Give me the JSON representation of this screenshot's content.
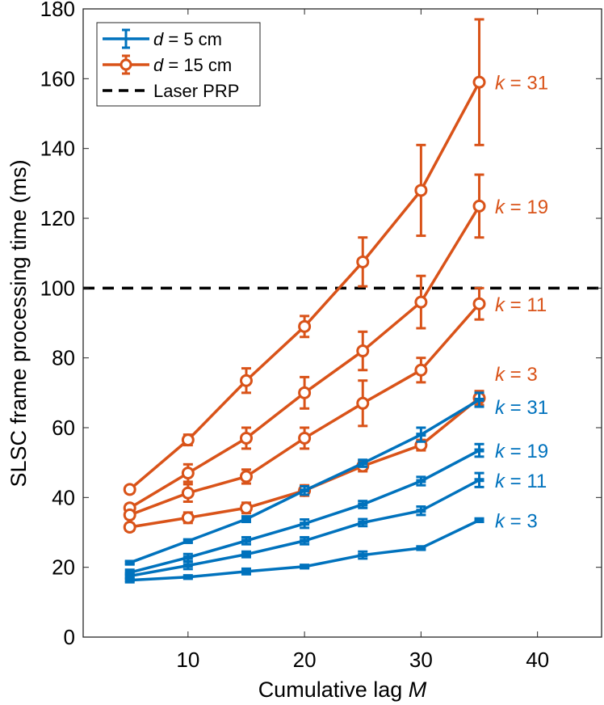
{
  "chart_data": {
    "type": "line",
    "title": "",
    "xlabel": "Cumulative lag",
    "xlabel_var": "M",
    "ylabel": "SLSC frame processing time (ms)",
    "xlim": [
      1,
      45.5
    ],
    "ylim": [
      0,
      180
    ],
    "xticks": [
      10,
      20,
      30,
      40
    ],
    "yticks": [
      0,
      20,
      40,
      60,
      80,
      100,
      120,
      140,
      160,
      180
    ],
    "grid": false,
    "legend_position": "top-left",
    "x": [
      5,
      10,
      15,
      20,
      25,
      30,
      35
    ],
    "series": [
      {
        "name": "d = 15 cm",
        "group": "d15",
        "k": "k = 31",
        "color": "#D95319",
        "marker": "circle",
        "values": [
          42.3,
          56.5,
          73.5,
          89,
          107.5,
          128,
          159
        ],
        "errors": [
          1,
          1.5,
          3.5,
          3,
          7,
          13,
          18
        ]
      },
      {
        "name": "d = 15 cm",
        "group": "d15",
        "k": "k = 19",
        "color": "#D95319",
        "marker": "circle",
        "values": [
          37,
          47,
          57,
          70,
          82,
          96,
          123.5
        ],
        "errors": [
          1,
          2.5,
          3,
          4.5,
          5.5,
          7.5,
          9
        ]
      },
      {
        "name": "d = 15 cm",
        "group": "d15",
        "k": "k = 11",
        "color": "#D95319",
        "marker": "circle",
        "values": [
          35,
          41.3,
          46,
          57,
          67,
          76.5,
          95.5
        ],
        "errors": [
          1,
          2.5,
          2,
          3,
          6.5,
          3.5,
          4.5
        ]
      },
      {
        "name": "d = 15 cm",
        "group": "d15",
        "k": "k = 3",
        "color": "#D95319",
        "marker": "circle",
        "values": [
          31.5,
          34.2,
          37,
          42,
          49,
          55,
          68.5
        ],
        "errors": [
          1,
          1.5,
          1.5,
          1.5,
          1.5,
          1.5,
          2
        ]
      },
      {
        "name": "d = 5 cm",
        "group": "d5",
        "k": "k = 31",
        "color": "#0072BD",
        "marker": "none",
        "values": [
          21.3,
          27.5,
          33.8,
          42,
          49.8,
          58,
          68
        ],
        "errors": [
          0.5,
          0.5,
          0.8,
          1.2,
          1,
          2,
          2
        ]
      },
      {
        "name": "d = 5 cm",
        "group": "d5",
        "k": "k = 19",
        "color": "#0072BD",
        "marker": "none",
        "values": [
          18.5,
          22.8,
          27.6,
          32.5,
          38,
          44.7,
          53.5
        ],
        "errors": [
          0.8,
          1,
          1,
          1.2,
          1,
          1.2,
          1.8
        ]
      },
      {
        "name": "d = 5 cm",
        "group": "d5",
        "k": "k = 11",
        "color": "#0072BD",
        "marker": "none",
        "values": [
          17.5,
          20.5,
          23.7,
          27.6,
          32.8,
          36.2,
          45
        ],
        "errors": [
          0.8,
          1,
          0.8,
          1,
          1,
          1.2,
          2
        ]
      },
      {
        "name": "d = 5 cm",
        "group": "d5",
        "k": "k = 3",
        "color": "#0072BD",
        "marker": "none",
        "values": [
          16.3,
          17.2,
          18.8,
          20.2,
          23.5,
          25.5,
          33.5
        ],
        "errors": [
          0.6,
          0.5,
          0.8,
          0.5,
          1,
          0.5,
          0.5
        ]
      }
    ],
    "reference_line": {
      "name": "Laser PRP",
      "y": 100,
      "color": "#000000",
      "style": "dashed"
    },
    "legend": [
      {
        "var": "d",
        "text": " = 5 cm",
        "color": "#0072BD",
        "marker": "errorbar"
      },
      {
        "var": "d",
        "text": " = 15 cm",
        "color": "#D95319",
        "marker": "circle-errorbar"
      },
      {
        "var": "",
        "text": "Laser PRP",
        "color": "#000000",
        "marker": "dashed"
      }
    ],
    "annotations": [
      {
        "var": "k",
        "text": " = 31",
        "y": 159,
        "color": "#D95319"
      },
      {
        "var": "k",
        "text": " = 19",
        "y": 123.5,
        "color": "#D95319"
      },
      {
        "var": "k",
        "text": " = 11",
        "y": 95.5,
        "color": "#D95319"
      },
      {
        "var": "k",
        "text": " = 3",
        "y": 75.5,
        "color": "#D95319"
      },
      {
        "var": "k",
        "text": " = 31",
        "y": 66,
        "color": "#0072BD"
      },
      {
        "var": "k",
        "text": " = 19",
        "y": 53.5,
        "color": "#0072BD"
      },
      {
        "var": "k",
        "text": " = 11",
        "y": 45,
        "color": "#0072BD"
      },
      {
        "var": "k",
        "text": " = 3",
        "y": 33.5,
        "color": "#0072BD"
      }
    ]
  }
}
